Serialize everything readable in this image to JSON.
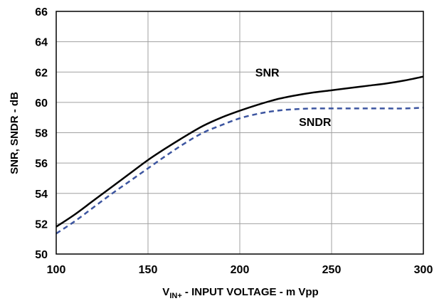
{
  "chart_data": {
    "type": "line",
    "xlabel": {
      "prefix": "V",
      "subscript": "IN+",
      "suffix": " - INPUT VOLTAGE - m Vpp"
    },
    "ylabel": "SNR, SNDR - dB",
    "xlim": [
      100,
      300
    ],
    "ylim": [
      50,
      66
    ],
    "xticks": [
      100,
      150,
      200,
      250,
      300
    ],
    "yticks": [
      50,
      52,
      54,
      56,
      58,
      60,
      62,
      64,
      66
    ],
    "grid": true,
    "series": [
      {
        "name": "SNR",
        "color": "#000000",
        "line_style": "solid",
        "x": [
          100,
          110,
          120,
          130,
          140,
          150,
          160,
          170,
          180,
          190,
          200,
          210,
          220,
          230,
          240,
          250,
          260,
          270,
          280,
          290,
          300
        ],
        "y": [
          51.8,
          52.6,
          53.5,
          54.4,
          55.3,
          56.2,
          57.0,
          57.75,
          58.45,
          59.0,
          59.45,
          59.85,
          60.2,
          60.45,
          60.65,
          60.8,
          60.95,
          61.1,
          61.25,
          61.45,
          61.7
        ]
      },
      {
        "name": "SNDR",
        "color": "#3c55a0",
        "line_style": "dashed",
        "x": [
          100,
          110,
          120,
          130,
          140,
          150,
          160,
          170,
          180,
          190,
          200,
          210,
          220,
          230,
          240,
          250,
          260,
          270,
          280,
          290,
          300
        ],
        "y": [
          51.35,
          52.15,
          53.05,
          53.95,
          54.8,
          55.65,
          56.5,
          57.3,
          58.0,
          58.5,
          58.95,
          59.25,
          59.45,
          59.55,
          59.6,
          59.6,
          59.6,
          59.6,
          59.6,
          59.6,
          59.65
        ]
      }
    ],
    "annotations": [
      {
        "text": "SNR",
        "x": 215,
        "y": 61.7
      },
      {
        "text": "SNDR",
        "x": 241,
        "y": 58.45
      }
    ]
  }
}
